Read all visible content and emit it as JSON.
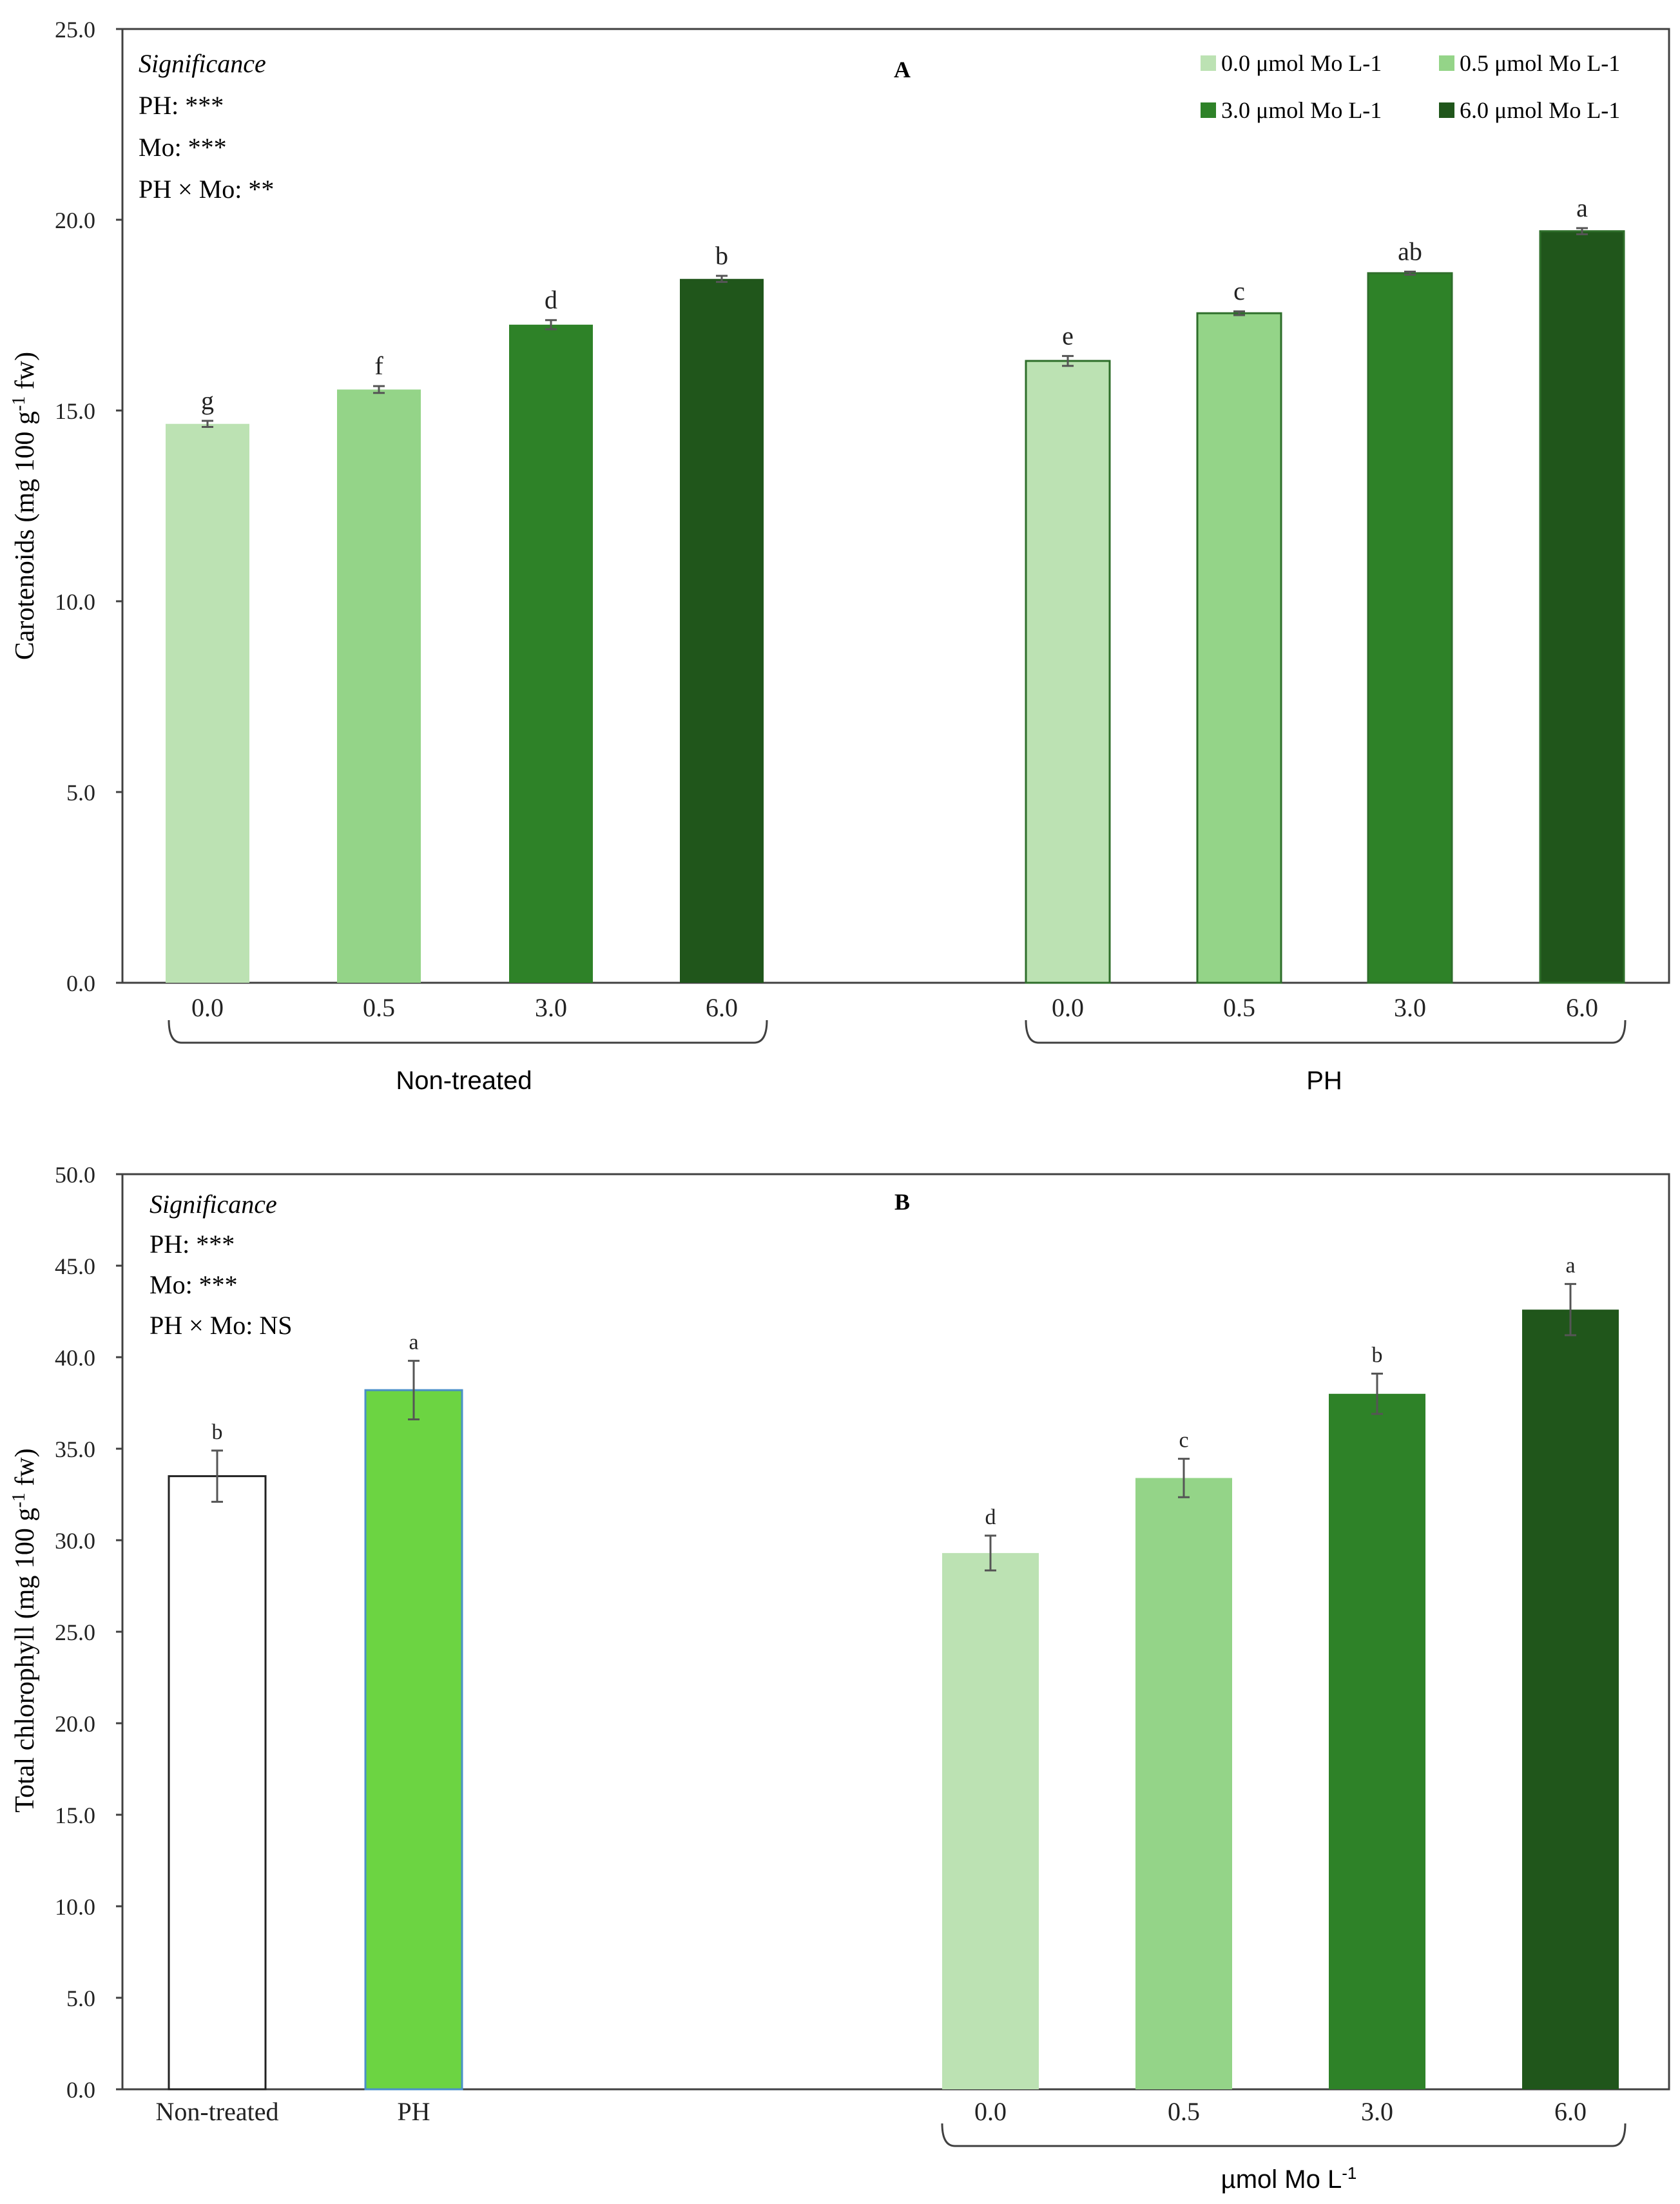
{
  "colors": {
    "mo_0_0": "#bce2b3",
    "mo_0_5": "#94d488",
    "mo_3_0": "#2e8228",
    "mo_6_0": "#20561b",
    "non_treated": "#ffffff",
    "ph": "#6cd442",
    "axis": "#404040",
    "error_bar": "#555555"
  },
  "chart_data": [
    {
      "id": "A",
      "type": "bar",
      "panel_label": "A",
      "title": "",
      "ylabel_parts": [
        "Carotenoids (mg 100 g",
        "-1",
        " fw)"
      ],
      "ylim": [
        0,
        25
      ],
      "yticks": [
        "0.0",
        "5.0",
        "10.0",
        "15.0",
        "20.0",
        "25.0"
      ],
      "grid": false,
      "significance": {
        "heading": "Significance",
        "lines": [
          "PH: ***",
          "Mo: ***",
          "PH × Mo: **"
        ]
      },
      "legend": {
        "position": "top-right",
        "entries": [
          {
            "label": "0.0 μmol Mo L-1",
            "color_key": "mo_0_0"
          },
          {
            "label": "0.5 μmol Mo L-1",
            "color_key": "mo_0_5"
          },
          {
            "label": "3.0 μmol Mo L-1",
            "color_key": "mo_3_0"
          },
          {
            "label": "6.0 μmol Mo L-1",
            "color_key": "mo_6_0"
          }
        ]
      },
      "groups": [
        {
          "name": "Non-treated",
          "bars": [
            {
              "category": "0.0",
              "value": 14.65,
              "error": 0.08,
              "letter": "g",
              "color_key": "mo_0_0"
            },
            {
              "category": "0.5",
              "value": 15.55,
              "error": 0.09,
              "letter": "f",
              "color_key": "mo_0_5"
            },
            {
              "category": "3.0",
              "value": 17.25,
              "error": 0.12,
              "letter": "d",
              "color_key": "mo_3_0"
            },
            {
              "category": "6.0",
              "value": 18.45,
              "error": 0.08,
              "letter": "b",
              "color_key": "mo_6_0"
            }
          ]
        },
        {
          "name": "PH",
          "bars": [
            {
              "category": "0.0",
              "value": 16.3,
              "error": 0.13,
              "letter": "e",
              "color_key": "mo_0_0"
            },
            {
              "category": "0.5",
              "value": 17.55,
              "error": 0.05,
              "letter": "c",
              "color_key": "mo_0_5"
            },
            {
              "category": "3.0",
              "value": 18.6,
              "error": 0.04,
              "letter": "ab",
              "color_key": "mo_3_0"
            },
            {
              "category": "6.0",
              "value": 19.7,
              "error": 0.08,
              "letter": "a",
              "color_key": "mo_6_0"
            }
          ]
        }
      ]
    },
    {
      "id": "B",
      "type": "bar",
      "panel_label": "B",
      "title": "",
      "ylabel_parts": [
        "Total chlorophyll (mg 100 g",
        "-1",
        " fw)"
      ],
      "ylim": [
        0,
        50
      ],
      "yticks": [
        "0.0",
        "5.0",
        "10.0",
        "15.0",
        "20.0",
        "25.0",
        "30.0",
        "35.0",
        "40.0",
        "45.0",
        "50.0"
      ],
      "grid": false,
      "significance": {
        "heading": "Significance",
        "lines": [
          "PH: ***",
          "Mo: ***",
          "PH × Mo: NS"
        ]
      },
      "groups": [
        {
          "name": "",
          "bars": [
            {
              "category": "Non-treated",
              "value": 33.5,
              "error": 1.4,
              "letter": "b",
              "color_key": "non_treated"
            },
            {
              "category": "PH",
              "value": 38.2,
              "error": 1.6,
              "letter": "a",
              "color_key": "ph"
            }
          ]
        },
        {
          "name_parts": [
            "µmol Mo L",
            "-1"
          ],
          "bars": [
            {
              "category": "0.0",
              "value": 29.3,
              "error": 0.95,
              "letter": "d",
              "color_key": "mo_0_0"
            },
            {
              "category": "0.5",
              "value": 33.4,
              "error": 1.05,
              "letter": "c",
              "color_key": "mo_0_5"
            },
            {
              "category": "3.0",
              "value": 38.0,
              "error": 1.1,
              "letter": "b",
              "color_key": "mo_3_0"
            },
            {
              "category": "6.0",
              "value": 42.6,
              "error": 1.4,
              "letter": "a",
              "color_key": "mo_6_0"
            }
          ]
        }
      ]
    }
  ]
}
